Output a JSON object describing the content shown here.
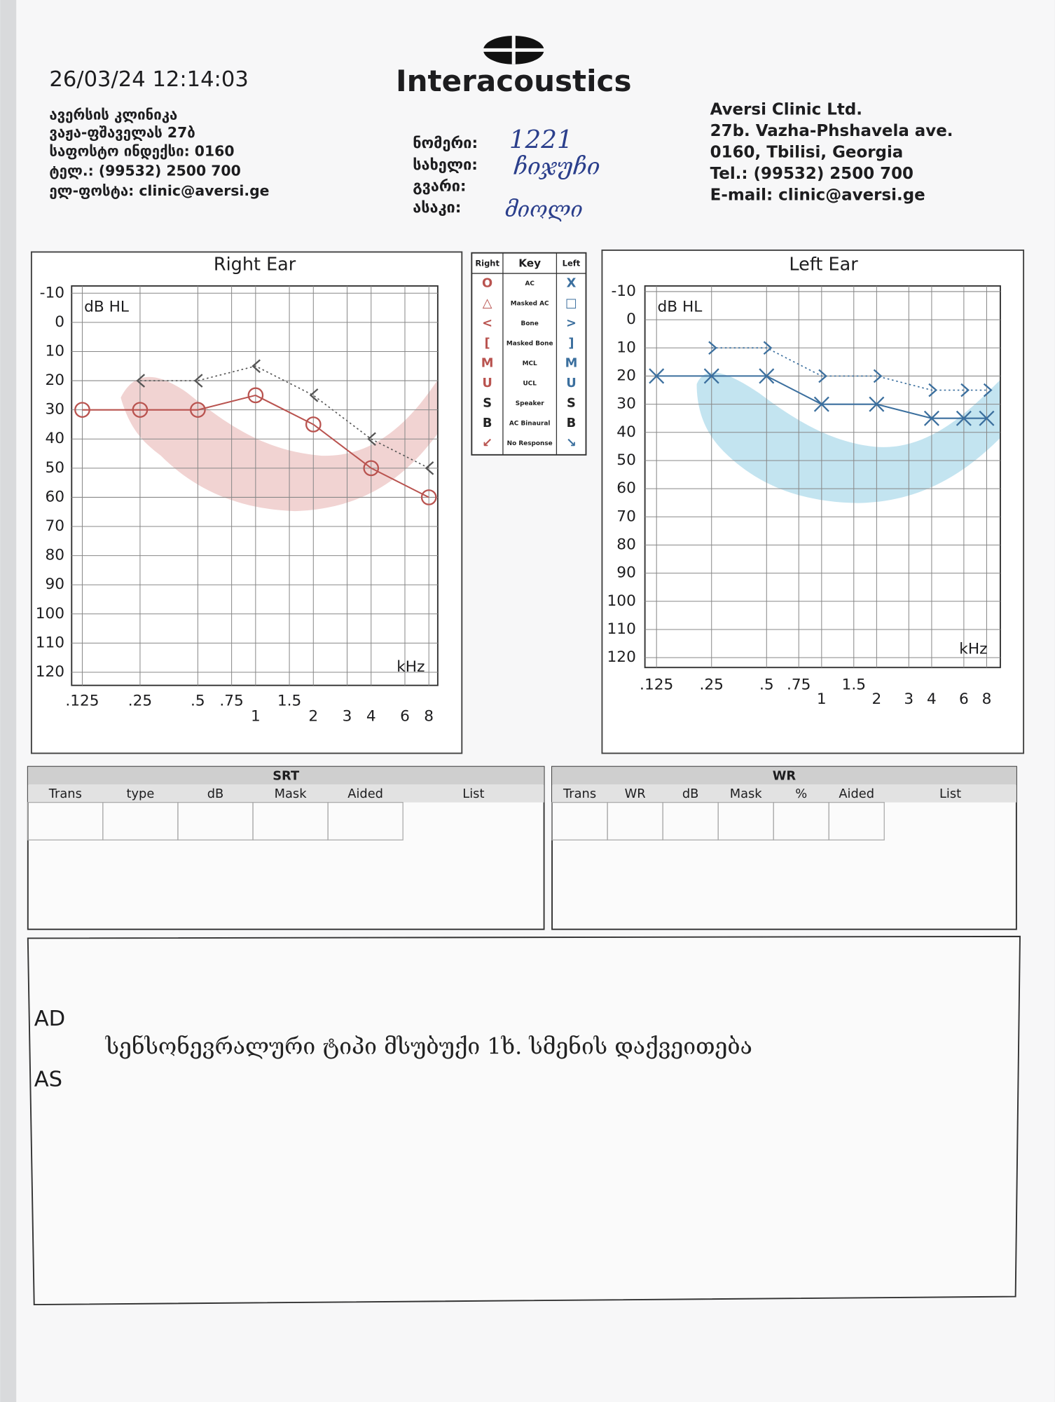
{
  "header": {
    "datetime": "26/03/24 12:14:03",
    "brand": "Interacoustics",
    "address_ka": [
      "ავერსის კლინიკა",
      "ვაჟა-ფშაველას 27ბ",
      "საფოსტო ინდექსი: 0160",
      "ტელ.: (99532) 2500 700",
      "ელ-ფოსტა: clinic@aversi.ge"
    ],
    "address_en": [
      "Aversi Clinic Ltd.",
      "27b. Vazha-Phshavela ave.",
      "0160, Tbilisi, Georgia",
      "Tel.: (99532) 2500 700",
      "E-mail: clinic@aversi.ge"
    ]
  },
  "patient": {
    "fields": [
      {
        "label": "ნომერი:",
        "value": "1221"
      },
      {
        "label": "სახელი:",
        "value": "ჩიჯუჩი"
      },
      {
        "label": "გვარი:"
      },
      {
        "label": "ასაკი:",
        "value": "მიოლი"
      }
    ]
  },
  "key": {
    "header": [
      "Right",
      "Key",
      "Left"
    ],
    "rows": [
      [
        "O",
        "AC",
        "X"
      ],
      [
        "△",
        "Masked AC",
        "□"
      ],
      [
        "<",
        "Bone",
        ">"
      ],
      [
        "[",
        "Masked Bone",
        "]"
      ],
      [
        "M",
        "MCL",
        "M"
      ],
      [
        "U",
        "UCL",
        "U"
      ],
      [
        "S",
        "Speaker",
        "S"
      ],
      [
        "B",
        "AC Binaural",
        "B"
      ],
      [
        "↙",
        "No Response",
        "↘"
      ]
    ]
  },
  "srt": {
    "title": "SRT",
    "columns": [
      "Trans",
      "type",
      "dB",
      "Mask",
      "Aided",
      "List"
    ]
  },
  "wr": {
    "title": "WR",
    "columns": [
      "Trans",
      "WR",
      "dB",
      "Mask",
      "%",
      "Aided",
      "List"
    ]
  },
  "notes": {
    "labels": [
      "AD",
      "AS"
    ],
    "text": "სენსონევრალური ტიპი მსუბუქი 1ხ. სმენის დაქვეითება"
  },
  "chart_data": [
    {
      "type": "line",
      "title": "Right Ear",
      "y_label": "dB HL",
      "x_label": "kHz",
      "x_log": true,
      "y_reversed": true,
      "grid": true,
      "xlim": [
        0.11,
        8.9
      ],
      "ylim": [
        -12.5,
        124.5
      ],
      "xticks": [
        {
          "value": 0.125,
          "label": ".125"
        },
        {
          "value": 0.25,
          "label": ".25"
        },
        {
          "value": 0.5,
          "label": ".5"
        },
        {
          "value": 0.75,
          "label": ".75"
        },
        1,
        1.5,
        2,
        3,
        4,
        6,
        8
      ],
      "yticks": [
        -10,
        0,
        10,
        20,
        30,
        40,
        50,
        60,
        70,
        80,
        90,
        100,
        110,
        120
      ],
      "series": [
        {
          "marker": "circle",
          "line": "solid",
          "color": "#b9534f",
          "x": [
            0.125,
            0.25,
            0.5,
            1,
            2,
            4,
            8
          ],
          "values": [
            30,
            30,
            30,
            25,
            35,
            50,
            60
          ]
        },
        {
          "marker": "chevron-left",
          "line": "dotted",
          "color": "#555555",
          "x": [
            0.25,
            0.5,
            1,
            2,
            4,
            8
          ],
          "values": [
            20,
            20,
            15,
            25,
            40,
            50
          ]
        }
      ]
    },
    {
      "type": "line",
      "title": "Left Ear",
      "y_label": "dB HL",
      "x_label": "kHz",
      "x_log": true,
      "y_reversed": true,
      "grid": true,
      "xlim": [
        0.108,
        9.5
      ],
      "ylim": [
        -12,
        123.5
      ],
      "xticks": [
        {
          "value": 0.125,
          "label": ".125"
        },
        {
          "value": 0.25,
          "label": ".25"
        },
        {
          "value": 0.5,
          "label": ".5"
        },
        {
          "value": 0.75,
          "label": ".75"
        },
        1,
        1.5,
        2,
        3,
        4,
        6,
        8
      ],
      "yticks": [
        -10,
        0,
        10,
        20,
        30,
        40,
        50,
        60,
        70,
        80,
        90,
        100,
        110,
        120
      ],
      "series": [
        {
          "marker": "cross",
          "line": "solid",
          "color": "#3b6f9e",
          "x": [
            0.125,
            0.25,
            0.5,
            1,
            2,
            4,
            6,
            8
          ],
          "values": [
            20,
            20,
            20,
            30,
            30,
            35,
            35,
            35
          ]
        },
        {
          "marker": "chevron-right",
          "line": "dotted",
          "color": "#3b6f9e",
          "x": [
            0.25,
            0.5,
            1,
            2,
            4,
            6,
            8
          ],
          "values": [
            10,
            10,
            20,
            20,
            25,
            25,
            25
          ]
        }
      ]
    }
  ]
}
